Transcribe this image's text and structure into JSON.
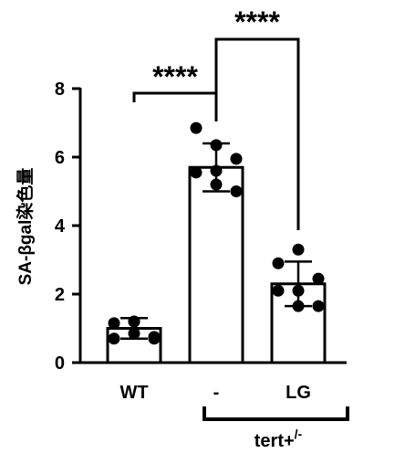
{
  "chart_data": {
    "type": "bar",
    "ylabel": "SA-βgal染色量",
    "ylim": [
      0,
      8
    ],
    "yticks": [
      0,
      2,
      4,
      6,
      8
    ],
    "categories": [
      "WT",
      "-",
      "LG"
    ],
    "values": [
      1.0,
      5.7,
      2.3
    ],
    "errors": [
      0.3,
      0.7,
      0.65
    ],
    "points": [
      [
        1.15,
        1.2,
        0.75,
        0.7,
        0.85,
        0.7,
        1.2
      ],
      [
        6.85,
        6.35,
        5.95,
        5.55,
        5.6,
        5.0,
        5.2
      ],
      [
        2.9,
        3.3,
        2.45,
        2.1,
        2.1,
        1.65,
        1.65
      ]
    ],
    "group_bracket": {
      "label": "tert+",
      "superscript": "/-",
      "covers": [
        "-",
        "LG"
      ]
    },
    "significance": [
      {
        "from": "WT",
        "to": "-",
        "label": "****"
      },
      {
        "from": "-",
        "to": "LG",
        "label": "****"
      }
    ],
    "colors": {
      "bar_fill": "#ffffff",
      "stroke": "#000000",
      "points": "#000000"
    }
  }
}
